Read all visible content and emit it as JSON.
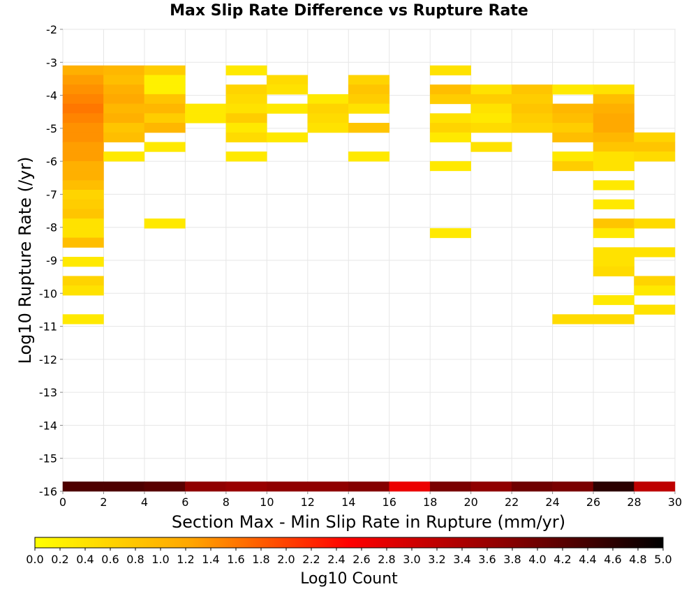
{
  "chart_data": {
    "type": "heatmap",
    "title": "Max Slip Rate Difference vs Rupture Rate",
    "xlabel": "Section Max - Min Slip Rate in Rupture (mm/yr)",
    "ylabel": "Log10 Rupture Rate (/yr)",
    "xlim": [
      0,
      30
    ],
    "ylim": [
      -16,
      -2
    ],
    "x_ticks": [
      "0",
      "2",
      "4",
      "6",
      "8",
      "10",
      "12",
      "14",
      "16",
      "18",
      "20",
      "22",
      "24",
      "26",
      "28",
      "30"
    ],
    "y_ticks": [
      "-2",
      "-3",
      "-4",
      "-5",
      "-6",
      "-7",
      "-8",
      "-9",
      "-10",
      "-11",
      "-12",
      "-13",
      "-14",
      "-15",
      "-16"
    ],
    "x_bin_width": 2,
    "y_bin_height": 0.29,
    "grid": true,
    "colorbar": {
      "label": "Log10 Count",
      "range": [
        0,
        5
      ],
      "ticks": [
        "0.0",
        "0.2",
        "0.4",
        "0.6",
        "0.8",
        "1.0",
        "1.2",
        "1.4",
        "1.6",
        "1.8",
        "2.0",
        "2.2",
        "2.4",
        "2.6",
        "2.8",
        "3.0",
        "3.2",
        "3.4",
        "3.6",
        "3.8",
        "4.0",
        "4.2",
        "4.4",
        "4.6",
        "4.8",
        "5.0"
      ],
      "colors": [
        "#ffff00",
        "#ffa500",
        "#ff0000",
        "#8b0000",
        "#000000"
      ]
    },
    "cells": [
      {
        "x": 0,
        "y": -3.39,
        "v": 1.1
      },
      {
        "x": 0,
        "y": -3.68,
        "v": 1.3
      },
      {
        "x": 0,
        "y": -3.97,
        "v": 1.4
      },
      {
        "x": 0,
        "y": -4.26,
        "v": 1.5
      },
      {
        "x": 0,
        "y": -4.55,
        "v": 1.6
      },
      {
        "x": 0,
        "y": -4.84,
        "v": 1.5
      },
      {
        "x": 0,
        "y": -5.13,
        "v": 1.4
      },
      {
        "x": 0,
        "y": -5.42,
        "v": 1.4
      },
      {
        "x": 0,
        "y": -5.71,
        "v": 1.3
      },
      {
        "x": 0,
        "y": -6.0,
        "v": 1.3
      },
      {
        "x": 0,
        "y": -6.29,
        "v": 1.1
      },
      {
        "x": 0,
        "y": -6.58,
        "v": 1.1
      },
      {
        "x": 0,
        "y": -6.87,
        "v": 0.9
      },
      {
        "x": 0,
        "y": -7.16,
        "v": 0.6
      },
      {
        "x": 0,
        "y": -7.45,
        "v": 0.7
      },
      {
        "x": 0,
        "y": -7.74,
        "v": 0.8
      },
      {
        "x": 0,
        "y": -8.03,
        "v": 0.4
      },
      {
        "x": 0,
        "y": -8.32,
        "v": 0.4
      },
      {
        "x": 0,
        "y": -8.61,
        "v": 0.9
      },
      {
        "x": 0,
        "y": -9.19,
        "v": 0.3
      },
      {
        "x": 0,
        "y": -9.77,
        "v": 0.6
      },
      {
        "x": 0,
        "y": -10.06,
        "v": 0.4
      },
      {
        "x": 0,
        "y": -10.93,
        "v": 0.3
      },
      {
        "x": 2,
        "y": -3.39,
        "v": 1.0
      },
      {
        "x": 2,
        "y": -3.68,
        "v": 0.9
      },
      {
        "x": 2,
        "y": -3.97,
        "v": 1.1
      },
      {
        "x": 2,
        "y": -4.26,
        "v": 1.2
      },
      {
        "x": 2,
        "y": -4.55,
        "v": 1.0
      },
      {
        "x": 2,
        "y": -4.84,
        "v": 1.1
      },
      {
        "x": 2,
        "y": -5.13,
        "v": 0.8
      },
      {
        "x": 2,
        "y": -5.42,
        "v": 0.9
      },
      {
        "x": 2,
        "y": -6.0,
        "v": 0.3
      },
      {
        "x": 4,
        "y": -3.39,
        "v": 0.7
      },
      {
        "x": 4,
        "y": -3.68,
        "v": 0.2
      },
      {
        "x": 4,
        "y": -3.97,
        "v": 0.2
      },
      {
        "x": 4,
        "y": -4.26,
        "v": 0.8
      },
      {
        "x": 4,
        "y": -4.55,
        "v": 1.0
      },
      {
        "x": 4,
        "y": -4.84,
        "v": 0.7
      },
      {
        "x": 4,
        "y": -5.13,
        "v": 1.0
      },
      {
        "x": 4,
        "y": -5.71,
        "v": 0.3
      },
      {
        "x": 4,
        "y": -8.03,
        "v": 0.3
      },
      {
        "x": 6,
        "y": -4.55,
        "v": 0.3
      },
      {
        "x": 6,
        "y": -4.84,
        "v": 0.3
      },
      {
        "x": 8,
        "y": -3.39,
        "v": 0.3
      },
      {
        "x": 8,
        "y": -3.97,
        "v": 0.6
      },
      {
        "x": 8,
        "y": -4.26,
        "v": 0.5
      },
      {
        "x": 8,
        "y": -4.55,
        "v": 0.4
      },
      {
        "x": 8,
        "y": -4.84,
        "v": 0.7
      },
      {
        "x": 8,
        "y": -5.13,
        "v": 0.3
      },
      {
        "x": 8,
        "y": -5.42,
        "v": 0.5
      },
      {
        "x": 8,
        "y": -6.0,
        "v": 0.3
      },
      {
        "x": 10,
        "y": -3.68,
        "v": 0.5
      },
      {
        "x": 10,
        "y": -3.97,
        "v": 0.4
      },
      {
        "x": 10,
        "y": -4.55,
        "v": 0.3
      },
      {
        "x": 10,
        "y": -5.42,
        "v": 0.3
      },
      {
        "x": 12,
        "y": -4.26,
        "v": 0.3
      },
      {
        "x": 12,
        "y": -4.55,
        "v": 0.6
      },
      {
        "x": 12,
        "y": -4.84,
        "v": 0.5
      },
      {
        "x": 12,
        "y": -5.13,
        "v": 0.4
      },
      {
        "x": 14,
        "y": -3.68,
        "v": 0.6
      },
      {
        "x": 14,
        "y": -3.97,
        "v": 0.8
      },
      {
        "x": 14,
        "y": -4.26,
        "v": 0.7
      },
      {
        "x": 14,
        "y": -4.55,
        "v": 0.4
      },
      {
        "x": 14,
        "y": -5.13,
        "v": 0.8
      },
      {
        "x": 14,
        "y": -6.0,
        "v": 0.3
      },
      {
        "x": 18,
        "y": -3.39,
        "v": 0.4
      },
      {
        "x": 18,
        "y": -3.97,
        "v": 0.9
      },
      {
        "x": 18,
        "y": -4.26,
        "v": 0.7
      },
      {
        "x": 18,
        "y": -4.84,
        "v": 0.4
      },
      {
        "x": 18,
        "y": -5.13,
        "v": 0.6
      },
      {
        "x": 18,
        "y": -5.42,
        "v": 0.3
      },
      {
        "x": 18,
        "y": -6.29,
        "v": 0.3
      },
      {
        "x": 18,
        "y": -8.32,
        "v": 0.3
      },
      {
        "x": 20,
        "y": -3.97,
        "v": 0.4
      },
      {
        "x": 20,
        "y": -4.26,
        "v": 0.7
      },
      {
        "x": 20,
        "y": -4.55,
        "v": 0.4
      },
      {
        "x": 20,
        "y": -4.84,
        "v": 0.3
      },
      {
        "x": 20,
        "y": -5.13,
        "v": 0.5
      },
      {
        "x": 20,
        "y": -5.71,
        "v": 0.4
      },
      {
        "x": 22,
        "y": -3.97,
        "v": 0.8
      },
      {
        "x": 22,
        "y": -4.26,
        "v": 0.7
      },
      {
        "x": 22,
        "y": -4.55,
        "v": 0.8
      },
      {
        "x": 22,
        "y": -4.84,
        "v": 0.7
      },
      {
        "x": 22,
        "y": -5.13,
        "v": 0.6
      },
      {
        "x": 24,
        "y": -3.97,
        "v": 0.3
      },
      {
        "x": 24,
        "y": -4.55,
        "v": 1.0
      },
      {
        "x": 24,
        "y": -4.84,
        "v": 0.9
      },
      {
        "x": 24,
        "y": -5.13,
        "v": 0.7
      },
      {
        "x": 24,
        "y": -5.42,
        "v": 0.9
      },
      {
        "x": 24,
        "y": -6.0,
        "v": 0.3
      },
      {
        "x": 24,
        "y": -6.29,
        "v": 0.7
      },
      {
        "x": 24,
        "y": -10.93,
        "v": 0.5
      },
      {
        "x": 26,
        "y": -3.97,
        "v": 0.4
      },
      {
        "x": 26,
        "y": -4.26,
        "v": 0.9
      },
      {
        "x": 26,
        "y": -4.55,
        "v": 1.1
      },
      {
        "x": 26,
        "y": -4.84,
        "v": 1.2
      },
      {
        "x": 26,
        "y": -5.13,
        "v": 1.2
      },
      {
        "x": 26,
        "y": -5.42,
        "v": 1.0
      },
      {
        "x": 26,
        "y": -5.71,
        "v": 0.8
      },
      {
        "x": 26,
        "y": -6.0,
        "v": 0.4
      },
      {
        "x": 26,
        "y": -6.29,
        "v": 0.4
      },
      {
        "x": 26,
        "y": -6.87,
        "v": 0.3
      },
      {
        "x": 26,
        "y": -7.45,
        "v": 0.3
      },
      {
        "x": 26,
        "y": -8.03,
        "v": 0.8
      },
      {
        "x": 26,
        "y": -8.32,
        "v": 0.3
      },
      {
        "x": 26,
        "y": -8.9,
        "v": 0.4
      },
      {
        "x": 26,
        "y": -9.19,
        "v": 0.4
      },
      {
        "x": 26,
        "y": -9.48,
        "v": 0.5
      },
      {
        "x": 26,
        "y": -10.35,
        "v": 0.3
      },
      {
        "x": 26,
        "y": -10.93,
        "v": 0.5
      },
      {
        "x": 28,
        "y": -5.42,
        "v": 0.6
      },
      {
        "x": 28,
        "y": -5.71,
        "v": 0.8
      },
      {
        "x": 28,
        "y": -6.0,
        "v": 0.5
      },
      {
        "x": 28,
        "y": -8.03,
        "v": 0.5
      },
      {
        "x": 28,
        "y": -8.9,
        "v": 0.4
      },
      {
        "x": 28,
        "y": -9.77,
        "v": 0.6
      },
      {
        "x": 28,
        "y": -10.06,
        "v": 0.3
      },
      {
        "x": 28,
        "y": -10.64,
        "v": 0.4
      },
      {
        "x": 0,
        "y": -16.0,
        "v": 4.3
      },
      {
        "x": 2,
        "y": -16.0,
        "v": 4.3
      },
      {
        "x": 4,
        "y": -16.0,
        "v": 4.2
      },
      {
        "x": 6,
        "y": -16.0,
        "v": 3.7
      },
      {
        "x": 8,
        "y": -16.0,
        "v": 3.6
      },
      {
        "x": 10,
        "y": -16.0,
        "v": 3.7
      },
      {
        "x": 12,
        "y": -16.0,
        "v": 3.7
      },
      {
        "x": 14,
        "y": -16.0,
        "v": 3.8
      },
      {
        "x": 16,
        "y": -16.0,
        "v": 2.7
      },
      {
        "x": 18,
        "y": -16.0,
        "v": 3.9
      },
      {
        "x": 20,
        "y": -16.0,
        "v": 3.7
      },
      {
        "x": 22,
        "y": -16.0,
        "v": 4.0
      },
      {
        "x": 24,
        "y": -16.0,
        "v": 3.9
      },
      {
        "x": 26,
        "y": -16.0,
        "v": 4.6
      },
      {
        "x": 28,
        "y": -16.0,
        "v": 3.2
      }
    ]
  }
}
